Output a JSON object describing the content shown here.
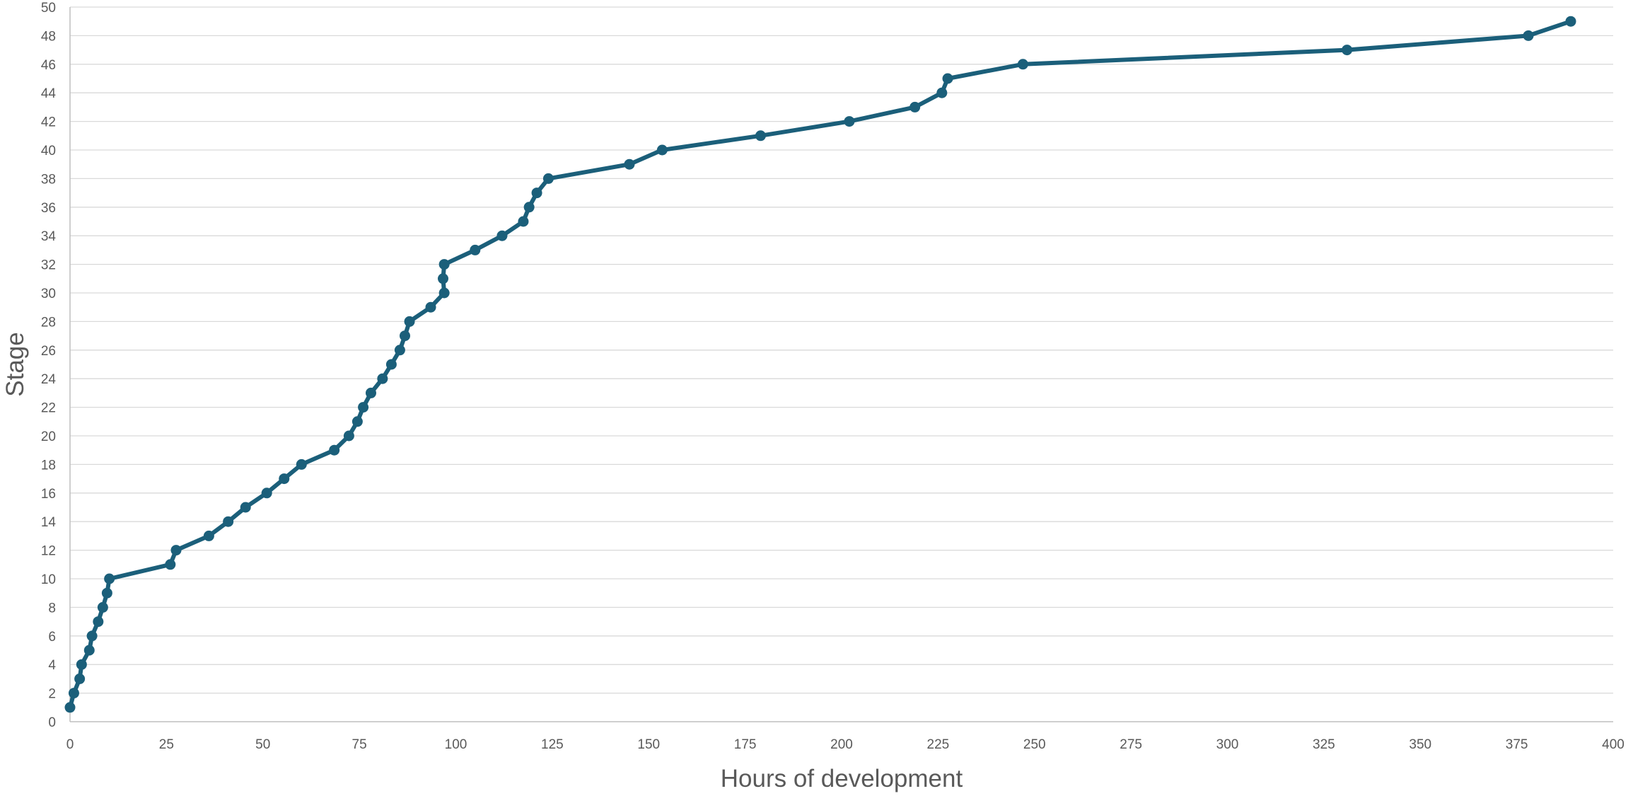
{
  "chart_data": {
    "type": "line",
    "xlabel": "Hours of development",
    "ylabel": "Stage",
    "xlim": [
      0,
      400
    ],
    "ylim": [
      0,
      50
    ],
    "x_ticks": [
      "0",
      "25",
      "50",
      "75",
      "100",
      "125",
      "150",
      "175",
      "200",
      "225",
      "250",
      "275",
      "300",
      "325",
      "350",
      "375",
      "400"
    ],
    "y_ticks": [
      "0",
      "2",
      "4",
      "6",
      "8",
      "10",
      "12",
      "14",
      "16",
      "18",
      "20",
      "22",
      "24",
      "26",
      "28",
      "30",
      "32",
      "34",
      "36",
      "38",
      "40",
      "42",
      "44",
      "46",
      "48",
      "50"
    ],
    "grid": "horizontal",
    "series_color": "#1b5f7a",
    "series": [
      {
        "x": [
          0,
          1,
          2.5,
          3,
          5,
          5.7,
          7.3,
          8.5,
          9.6,
          10.2,
          26,
          27.5,
          36,
          41,
          45.5,
          51,
          55.5,
          60,
          68.5,
          72.3,
          74.5,
          76,
          78,
          81,
          83.3,
          85.5,
          86.8,
          88,
          93.5,
          97,
          96.7,
          97,
          105,
          112,
          117.5,
          119,
          121,
          124,
          145,
          153.5,
          179,
          202,
          219,
          226,
          227.5,
          247,
          331,
          378,
          389
        ],
        "y": [
          1,
          2,
          3,
          4,
          5,
          6,
          7,
          8,
          9,
          10,
          11,
          12,
          13,
          14,
          15,
          16,
          17,
          18,
          19,
          20,
          21,
          22,
          23,
          24,
          25,
          26,
          27,
          28,
          29,
          30,
          31,
          32,
          33,
          34,
          35,
          36,
          37,
          38,
          39,
          40,
          41,
          42,
          43,
          44,
          45,
          46,
          47,
          48,
          49
        ]
      }
    ]
  }
}
